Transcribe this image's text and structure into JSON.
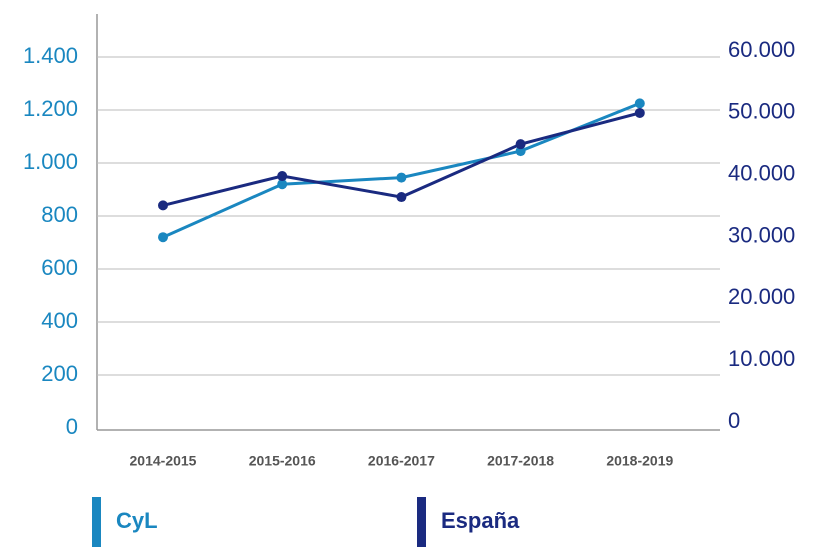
{
  "chart_data": {
    "type": "line",
    "categories": [
      "2014-2015",
      "2015-2016",
      "2016-2017",
      "2017-2018",
      "2018-2019"
    ],
    "series": [
      {
        "name": "CyL",
        "color": "#1a87c0",
        "values": [
          720,
          920,
          945,
          1045,
          1225
        ]
      },
      {
        "name": "España",
        "color": "#1a2a80",
        "axis": "y2",
        "values": [
          36000,
          40750,
          37350,
          45900,
          50950
        ]
      }
    ],
    "ylim": [
      0,
      1400
    ],
    "yticks": [
      0,
      200,
      400,
      600,
      800,
      {
        "value": 1000,
        "label": "1.000"
      },
      {
        "value": 1200,
        "label": "1.200"
      },
      {
        "value": 1400,
        "label": "1.400"
      }
    ],
    "y2lim": [
      0,
      60000
    ],
    "y2ticks": [
      0,
      {
        "value": 10000,
        "label": "10.000"
      },
      {
        "value": 20000,
        "label": "20.000"
      },
      {
        "value": 30000,
        "label": "30.000"
      },
      {
        "value": 40000,
        "label": "40.000"
      },
      {
        "value": 50000,
        "label": "50.000"
      },
      {
        "value": 60000,
        "label": "60.000"
      }
    ],
    "grid": true
  }
}
